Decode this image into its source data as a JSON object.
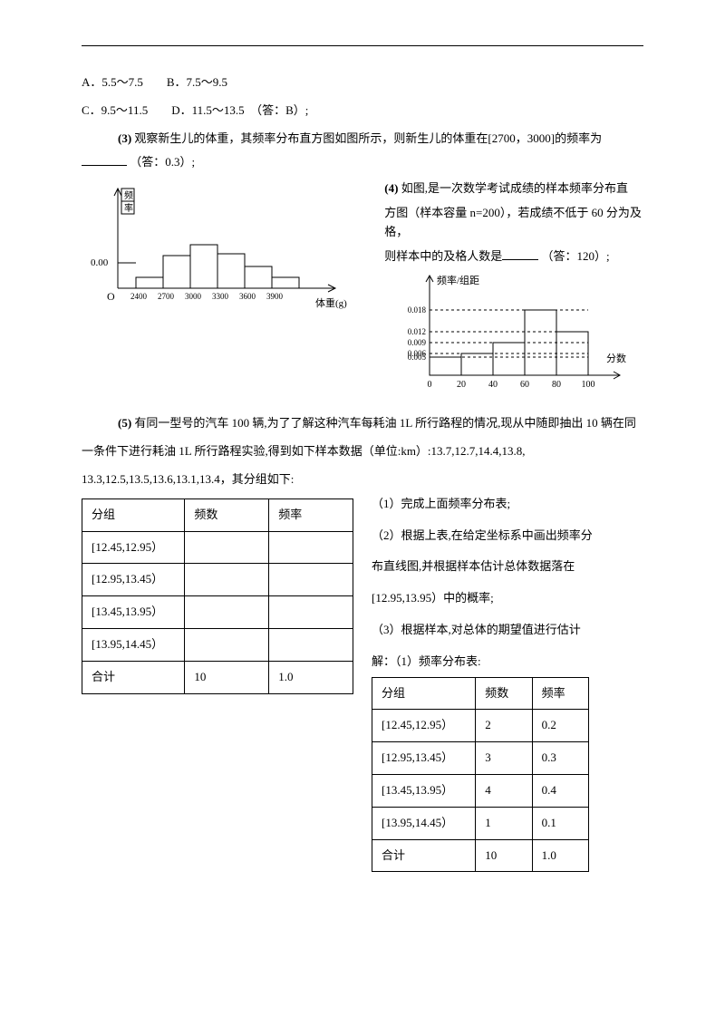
{
  "topLine1": "A．5.5～7.5　　B．7.5～9.5",
  "topLine2": "C．9.5～11.5　　D．11.5～13.5　（答：B）;",
  "q3": {
    "prefix": "(3)",
    "text1": "观察新生儿的体重，其频率分布直方图如图所示，则新生儿的体重在[2700，3000]的频率为",
    "ans": "（答：0.3）;"
  },
  "q4": {
    "prefix": "(4)",
    "line1": "如图,是一次数学考试成绩的样本频率分布直",
    "line2": "方图（样本容量 n=200），若成绩不低于 60 分为及格，",
    "line3a": "则样本中的及格人数是",
    "line3b": "（答：120）;"
  },
  "chart1": {
    "ylabel1": "频",
    "ylabel2": "率",
    "ytick": "0.00",
    "origin": "O",
    "xlabels": [
      "2400",
      "2700",
      "3000",
      "3300",
      "3600",
      "3900"
    ],
    "xaxis": "体重(g)",
    "bars": [
      12,
      36,
      48,
      38,
      24,
      12
    ],
    "bar_color": "#ffffff",
    "stroke": "#000000"
  },
  "chart2": {
    "ylabel": "频率/组距",
    "yticks": [
      "0.018",
      "0.012",
      "0.009",
      "0.006",
      "0.005"
    ],
    "xticks": [
      "0",
      "20",
      "40",
      "60",
      "80",
      "100"
    ],
    "xaxis": "分数",
    "bars": [
      10,
      12,
      18,
      36,
      24
    ],
    "dash_y": [
      36,
      24,
      18,
      12,
      10
    ],
    "stroke": "#000000"
  },
  "q5": {
    "prefix": "(5)",
    "line1": "有同一型号的汽车 100 辆,为了了解这种汽车每耗油 1L 所行路程的情况,现从中随即抽出 10 辆在同",
    "line2": "一条件下进行耗油 1L 所行路程实验,得到如下样本数据（单位:km）:13.7,12.7,14.4,13.8,",
    "line3": "13.3,12.5,13.5,13.6,13.1,13.4，其分组如下:"
  },
  "table1": {
    "headers": [
      "分组",
      "频数",
      "频率"
    ],
    "rows": [
      [
        "[12.45,12.95）",
        "",
        ""
      ],
      [
        "[12.95,13.45）",
        "",
        ""
      ],
      [
        "[13.45,13.95）",
        "",
        ""
      ],
      [
        "[13.95,14.45）",
        "",
        ""
      ],
      [
        "合计",
        "10",
        "1.0"
      ]
    ]
  },
  "rightText": {
    "p1": "（1）完成上面频率分布表;",
    "p2": "（2）根据上表,在给定坐标系中画出频率分",
    "p3": "布直线图,并根据样本估计总体数据落在",
    "p4": "[12.95,13.95）中的概率;",
    "p5": "（3）根据样本,对总体的期望值进行估计",
    "p6": "解：（1）频率分布表:"
  },
  "table2": {
    "headers": [
      "分组",
      "频数",
      "频率"
    ],
    "rows": [
      [
        "[12.45,12.95）",
        "2",
        "0.2"
      ],
      [
        "[12.95,13.45）",
        "3",
        "0.3"
      ],
      [
        "[13.45,13.95）",
        "4",
        "0.4"
      ],
      [
        "[13.95,14.45）",
        "1",
        "0.1"
      ],
      [
        "合计",
        "10",
        "1.0"
      ]
    ]
  }
}
